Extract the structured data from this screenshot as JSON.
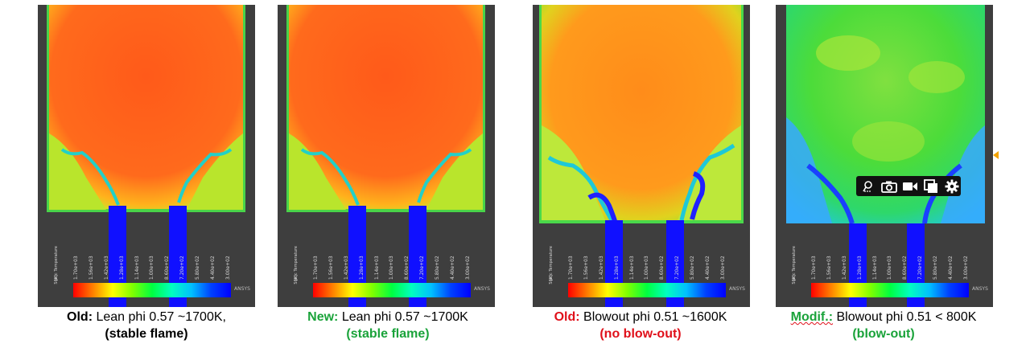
{
  "colorbar": {
    "title": "Static Temperature",
    "unit": "[K]",
    "ticks": [
      "1.70e+03",
      "1.56e+03",
      "1.42e+03",
      "1.28e+03",
      "1.14e+03",
      "1.00e+03",
      "8.60e+02",
      "7.20e+02",
      "5.80e+02",
      "4.40e+02",
      "3.00e+02"
    ],
    "logo": "ANSYS"
  },
  "captions": [
    {
      "prefix": "Old:",
      "text": " Lean phi 0.57 ~1700K,",
      "note": "(stable flame)"
    },
    {
      "prefix": "New:",
      "text": " Lean phi 0.57 ~1700K",
      "note": "(stable flame)"
    },
    {
      "prefix": "Old:",
      "text": " Blowout phi 0.51 ~1600K",
      "note": "(no blow-out)"
    },
    {
      "prefix": "Modif.:",
      "text": " Blowout phi 0.51 < 800K",
      "note": "(blow-out)"
    }
  ],
  "toolbar": {
    "icons": [
      "pin-icon",
      "camera-icon",
      "video-icon",
      "copy-icon",
      "gear-icon"
    ]
  },
  "colors": {
    "hot": "#ff5a1a",
    "warm_orange": "#ff8c1a",
    "green": "#30d830",
    "blue": "#1010ff",
    "caption_green": "#1aa33a",
    "caption_red": "#e0101a"
  }
}
